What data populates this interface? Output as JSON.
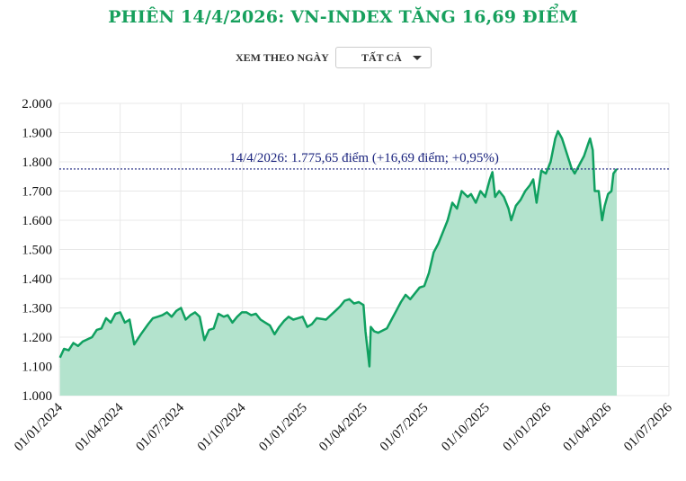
{
  "title": "PHIÊN 14/4/2026: VN-INDEX TĂNG 16,69 ĐIỂM",
  "filter": {
    "label": "XEM THEO NGÀY",
    "selected": "TẤT CẢ"
  },
  "colors": {
    "title": "#17a05d",
    "line": "#10a060",
    "area": "#b3e3cd",
    "reference": "#1a237e"
  },
  "chart_data": {
    "type": "area",
    "title": "",
    "xlabel": "",
    "ylabel": "",
    "ylim": [
      1000,
      2000
    ],
    "xlim": [
      "2024-01-01",
      "2026-07-01"
    ],
    "grid": true,
    "y_ticks": [
      "1.000",
      "1.100",
      "1.200",
      "1.300",
      "1.400",
      "1.500",
      "1.600",
      "1.700",
      "1.800",
      "1.900",
      "2.000"
    ],
    "y_tick_values": [
      1000,
      1100,
      1200,
      1300,
      1400,
      1500,
      1600,
      1700,
      1800,
      1900,
      2000
    ],
    "x_ticks": [
      "01/01/2024",
      "01/04/2024",
      "01/07/2024",
      "01/10/2024",
      "01/01/2025",
      "01/04/2025",
      "01/07/2025",
      "01/10/2025",
      "01/01/2026",
      "01/04/2026",
      "01/07/2026"
    ],
    "x_tick_dates": [
      "2024-01-01",
      "2024-04-01",
      "2024-07-01",
      "2024-10-01",
      "2025-01-01",
      "2025-04-01",
      "2025-07-01",
      "2025-10-01",
      "2026-01-01",
      "2026-04-01",
      "2026-07-01"
    ],
    "reference_line": {
      "value": 1775.65,
      "label": "14/4/2026: 1.775,65 điểm (+16,69 điểm; +0,95%)"
    },
    "series": [
      {
        "x": [
          "2024-01-02",
          "2024-01-08",
          "2024-01-15",
          "2024-01-22",
          "2024-01-29",
          "2024-02-05",
          "2024-02-19",
          "2024-02-26",
          "2024-03-04",
          "2024-03-11",
          "2024-03-18",
          "2024-03-25",
          "2024-04-01",
          "2024-04-08",
          "2024-04-15",
          "2024-04-22",
          "2024-05-02",
          "2024-05-13",
          "2024-05-20",
          "2024-05-27",
          "2024-06-03",
          "2024-06-10",
          "2024-06-17",
          "2024-06-24",
          "2024-07-01",
          "2024-07-08",
          "2024-07-15",
          "2024-07-22",
          "2024-07-29",
          "2024-08-05",
          "2024-08-12",
          "2024-08-19",
          "2024-08-26",
          "2024-09-03",
          "2024-09-09",
          "2024-09-16",
          "2024-09-23",
          "2024-09-30",
          "2024-10-07",
          "2024-10-14",
          "2024-10-21",
          "2024-10-28",
          "2024-11-04",
          "2024-11-11",
          "2024-11-18",
          "2024-11-25",
          "2024-12-02",
          "2024-12-09",
          "2024-12-16",
          "2024-12-23",
          "2024-12-30",
          "2025-01-06",
          "2025-01-13",
          "2025-01-20",
          "2025-02-03",
          "2025-02-10",
          "2025-02-17",
          "2025-02-24",
          "2025-03-03",
          "2025-03-10",
          "2025-03-17",
          "2025-03-24",
          "2025-03-31",
          "2025-04-03",
          "2025-04-09",
          "2025-04-11",
          "2025-04-16",
          "2025-04-22",
          "2025-05-05",
          "2025-05-12",
          "2025-05-19",
          "2025-05-26",
          "2025-06-02",
          "2025-06-09",
          "2025-06-16",
          "2025-06-23",
          "2025-06-30",
          "2025-07-07",
          "2025-07-14",
          "2025-07-21",
          "2025-07-28",
          "2025-08-04",
          "2025-08-11",
          "2025-08-18",
          "2025-08-25",
          "2025-09-03",
          "2025-09-08",
          "2025-09-15",
          "2025-09-22",
          "2025-09-29",
          "2025-10-06",
          "2025-10-10",
          "2025-10-14",
          "2025-10-20",
          "2025-10-27",
          "2025-11-03",
          "2025-11-07",
          "2025-11-14",
          "2025-11-21",
          "2025-11-28",
          "2025-12-05",
          "2025-12-10",
          "2025-12-15",
          "2025-12-22",
          "2025-12-29",
          "2026-01-05",
          "2026-01-12",
          "2026-01-16",
          "2026-01-22",
          "2026-01-29",
          "2026-02-05",
          "2026-02-10",
          "2026-02-24",
          "2026-03-02",
          "2026-03-05",
          "2026-03-09",
          "2026-03-12",
          "2026-03-18",
          "2026-03-23",
          "2026-03-27",
          "2026-04-01",
          "2026-04-06",
          "2026-04-09",
          "2026-04-14"
        ],
        "y": [
          1130,
          1160,
          1155,
          1180,
          1170,
          1185,
          1200,
          1225,
          1230,
          1265,
          1250,
          1280,
          1285,
          1250,
          1260,
          1175,
          1210,
          1245,
          1265,
          1270,
          1275,
          1285,
          1270,
          1290,
          1300,
          1260,
          1275,
          1285,
          1270,
          1190,
          1225,
          1230,
          1280,
          1270,
          1275,
          1250,
          1270,
          1285,
          1285,
          1275,
          1280,
          1260,
          1250,
          1240,
          1210,
          1235,
          1255,
          1270,
          1260,
          1265,
          1270,
          1235,
          1245,
          1265,
          1260,
          1275,
          1290,
          1305,
          1325,
          1330,
          1315,
          1320,
          1310,
          1220,
          1100,
          1235,
          1220,
          1215,
          1230,
          1260,
          1290,
          1320,
          1345,
          1330,
          1350,
          1370,
          1375,
          1420,
          1490,
          1520,
          1560,
          1600,
          1660,
          1640,
          1700,
          1680,
          1690,
          1660,
          1700,
          1680,
          1740,
          1765,
          1680,
          1700,
          1680,
          1640,
          1600,
          1650,
          1670,
          1700,
          1720,
          1740,
          1660,
          1770,
          1760,
          1800,
          1880,
          1905,
          1880,
          1830,
          1780,
          1760,
          1820,
          1860,
          1880,
          1840,
          1700,
          1700,
          1600,
          1650,
          1690,
          1700,
          1760,
          1775.65
        ]
      }
    ]
  }
}
